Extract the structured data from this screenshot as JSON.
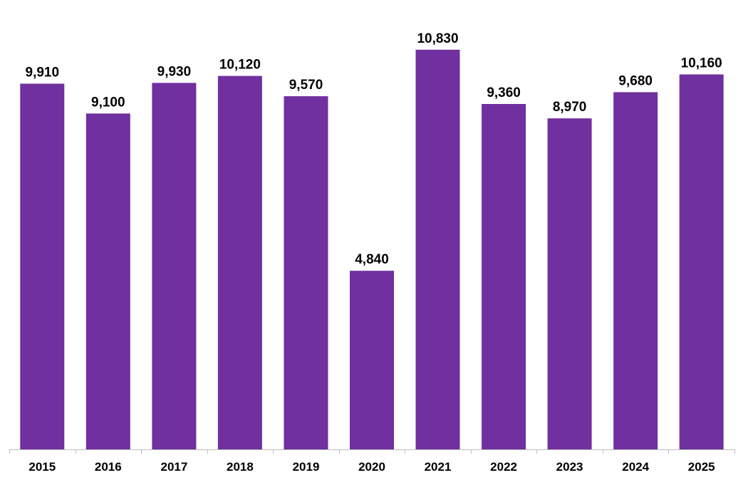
{
  "chart_data": {
    "type": "bar",
    "title": "",
    "xlabel": "",
    "ylabel": "",
    "categories": [
      "2015",
      "2016",
      "2017",
      "2018",
      "2019",
      "2020",
      "2021",
      "2022",
      "2023",
      "2024",
      "2025"
    ],
    "values": [
      9910,
      9100,
      9930,
      10120,
      9570,
      4840,
      10830,
      9360,
      8970,
      9680,
      10160
    ],
    "value_labels": [
      "9,910",
      "9,100",
      "9,930",
      "10,120",
      "9,570",
      "4,840",
      "10,830",
      "9,360",
      "8,970",
      "9,680",
      "10,160"
    ],
    "ylim": [
      0,
      11000
    ],
    "grid": false,
    "legend": "none",
    "colors": {
      "bar": "#7030A0",
      "axis": "#bfbfbf"
    }
  }
}
